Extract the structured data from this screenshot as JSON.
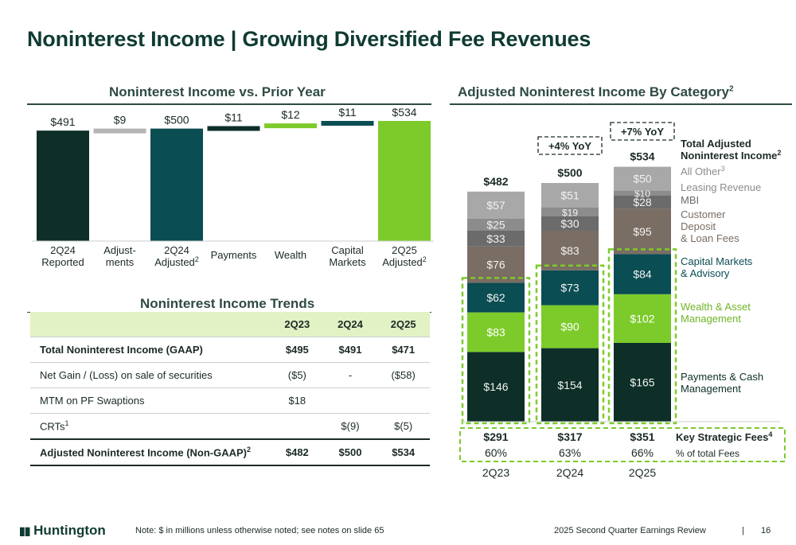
{
  "page": {
    "title": "Noninterest Income | Growing Diversified Fee Revenues",
    "left_title": "Noninterest Income vs. Prior Year",
    "right_title": "Adjusted Noninterest Income By Category",
    "right_title_sup": "2",
    "trends_title": "Noninterest Income Trends"
  },
  "colors": {
    "dark_green": "#0d2f28",
    "teal": "#0a4d52",
    "lime": "#7dcb2a",
    "grey": "#b5b5b5",
    "dark_grey": "#6b6b6b",
    "brown_grey": "#7a6d63",
    "light_grey": "#a8a8a8",
    "mid_grey": "#8c8c8c"
  },
  "chart_data": [
    {
      "type": "bar",
      "subtype": "waterfall",
      "categories": [
        "2Q24 Reported",
        "Adjust-ments",
        "2Q24 Adjusted",
        "Payments",
        "Wealth",
        "Capital Markets",
        "2Q25 Adjusted"
      ],
      "category_lines": [
        [
          "2Q24",
          "Reported"
        ],
        [
          "Adjust-",
          "ments"
        ],
        [
          "2Q24",
          "Adjusted"
        ],
        [
          "Payments"
        ],
        [
          "Wealth"
        ],
        [
          "Capital",
          "Markets"
        ],
        [
          "2Q25",
          "Adjusted"
        ]
      ],
      "category_sup": [
        "",
        "",
        "2",
        "",
        "",
        "",
        "2"
      ],
      "bars": [
        {
          "kind": "total",
          "value": 491,
          "label": "$491",
          "color": "#0d2f28"
        },
        {
          "kind": "delta",
          "value": 9,
          "label": "$9",
          "color": "#b5b5b5"
        },
        {
          "kind": "total",
          "value": 500,
          "label": "$500",
          "color": "#0a4d52"
        },
        {
          "kind": "delta",
          "value": 11,
          "label": "$11",
          "color": "#0d2f28"
        },
        {
          "kind": "delta",
          "value": 12,
          "label": "$12",
          "color": "#7dcb2a"
        },
        {
          "kind": "delta",
          "value": 11,
          "label": "$11",
          "color": "#0a4d52"
        },
        {
          "kind": "total",
          "value": 534,
          "label": "$534",
          "color": "#7dcb2a"
        }
      ]
    },
    {
      "type": "bar",
      "subtype": "stacked",
      "categories": [
        "2Q23",
        "2Q24",
        "2Q25"
      ],
      "totals": [
        482,
        500,
        534
      ],
      "total_labels": [
        "$482",
        "$500",
        "$534"
      ],
      "series": [
        {
          "name": "Payments & Cash Management",
          "values": [
            146,
            154,
            165
          ],
          "labels": [
            "$146",
            "$154",
            "$165"
          ],
          "color": "#0d2f28"
        },
        {
          "name": "Wealth & Asset Management",
          "values": [
            83,
            90,
            102
          ],
          "labels": [
            "$83",
            "$90",
            "$102"
          ],
          "color": "#7dcb2a"
        },
        {
          "name": "Capital Markets & Advisory",
          "values": [
            62,
            73,
            84
          ],
          "labels": [
            "$62",
            "$73",
            "$84"
          ],
          "color": "#0a4d52"
        },
        {
          "name": "Customer Deposit & Loan Fees",
          "values": [
            76,
            83,
            95
          ],
          "labels": [
            "$76",
            "$83",
            "$95"
          ],
          "color": "#7a6d63"
        },
        {
          "name": "MBI",
          "values": [
            33,
            30,
            28
          ],
          "labels": [
            "$33",
            "$30",
            "$28"
          ],
          "color": "#6b6b6b"
        },
        {
          "name": "Leasing Revenue",
          "values": [
            25,
            19,
            10
          ],
          "labels": [
            "$25",
            "$19",
            "$10"
          ],
          "color": "#8c8c8c"
        },
        {
          "name": "All Other",
          "values": [
            57,
            51,
            50
          ],
          "labels": [
            "$57",
            "$51",
            "$50"
          ],
          "color": "#a8a8a8"
        }
      ],
      "legend": [
        {
          "lines": [
            "Total Adjusted",
            "Noninterest Income"
          ],
          "sup": "2",
          "color": "#1b2a26",
          "bold": true
        },
        {
          "lines": [
            "All Other"
          ],
          "sup": "3",
          "color": "#8c8c8c",
          "bold": false
        },
        {
          "lines": [
            "Leasing Revenue"
          ],
          "sup": "",
          "color": "#8c8c8c",
          "bold": false
        },
        {
          "lines": [
            "MBI"
          ],
          "sup": "",
          "color": "#6b6b6b",
          "bold": false
        },
        {
          "lines": [
            "Customer",
            "Deposit",
            "& Loan Fees"
          ],
          "sup": "",
          "color": "#7a6d63",
          "bold": false
        },
        {
          "lines": [
            "Capital Markets",
            "& Advisory"
          ],
          "sup": "",
          "color": "#0a4d52",
          "bold": false
        },
        {
          "lines": [
            "Wealth & Asset",
            "Management"
          ],
          "sup": "",
          "color": "#6fb526",
          "bold": false
        },
        {
          "lines": [
            "Payments & Cash",
            "Management"
          ],
          "sup": "",
          "color": "#0d2f28",
          "bold": false
        }
      ],
      "yoy_callouts": [
        {
          "category": "2Q24",
          "text": "+4% YoY"
        },
        {
          "category": "2Q25",
          "text": "+7% YoY"
        }
      ],
      "key_strategic_fees": {
        "label": "Key Strategic Fees",
        "sup": "4",
        "values": [
          "$291",
          "$317",
          "$351"
        ],
        "pct_label": "% of total Fees",
        "pcts": [
          "60%",
          "63%",
          "66%"
        ]
      }
    }
  ],
  "trends_table": {
    "columns": [
      "",
      "2Q23",
      "2Q24",
      "2Q25"
    ],
    "rows": [
      {
        "label": "Total Noninterest Income (GAAP)",
        "sup": "",
        "values": [
          "$495",
          "$491",
          "$471"
        ],
        "bold": true
      },
      {
        "label": "Net Gain / (Loss) on sale of securities",
        "sup": "",
        "values": [
          "($5)",
          "-",
          "($58)"
        ],
        "bold": false
      },
      {
        "label": "MTM on PF Swaptions",
        "sup": "",
        "values": [
          "$18",
          "",
          ""
        ],
        "bold": false
      },
      {
        "label": "CRTs",
        "sup": "1",
        "values": [
          "",
          "$(9)",
          "$(5)"
        ],
        "bold": false
      },
      {
        "label": "Adjusted Noninterest Income (Non-GAAP)",
        "sup": "2",
        "values": [
          "$482",
          "$500",
          "$534"
        ],
        "bold": true
      }
    ]
  },
  "footer": {
    "logo": "Huntington",
    "note": "Note: $ in millions unless otherwise noted; see notes on slide 65",
    "right": "2025 Second Quarter Earnings Review",
    "separator": "|",
    "page": "16"
  }
}
